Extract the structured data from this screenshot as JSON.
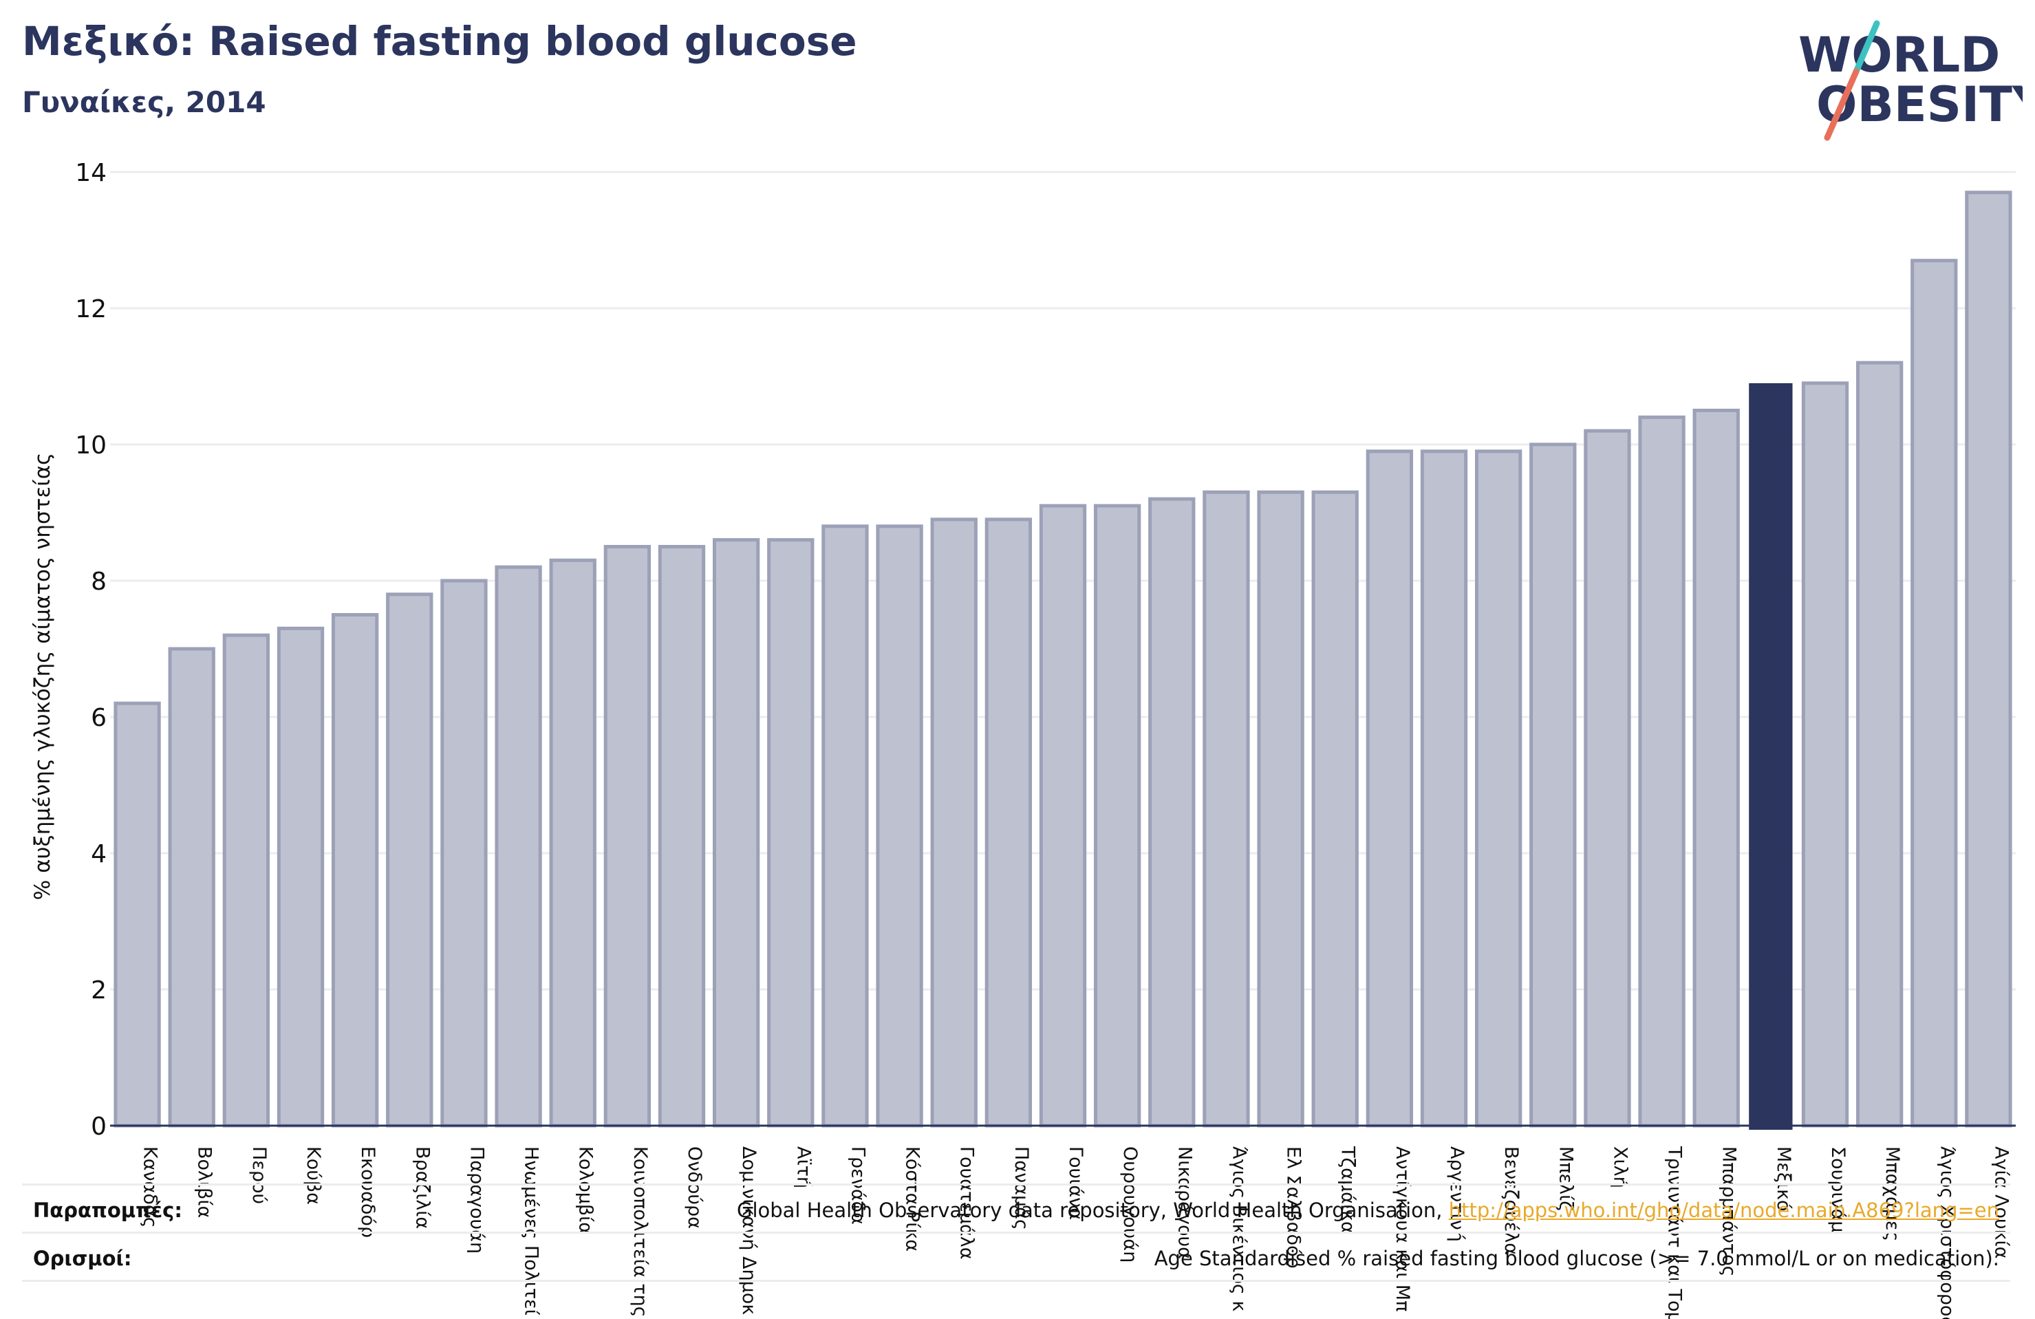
{
  "header": {
    "title": "Μεξικό: Raised fasting blood glucose",
    "subtitle": "Γυναίκες, 2014"
  },
  "logo": {
    "line1": "WORLD",
    "line2": "OBESITY",
    "accent1": "#3ec1c1",
    "accent2": "#e8705a"
  },
  "colors": {
    "bar": "#bec1cf",
    "bar_edge": "#9ca1b8",
    "highlight": "#2b355e",
    "title": "#2b355e",
    "grid": "#ececf0",
    "link": "#e8a92c"
  },
  "chart_data": {
    "type": "bar",
    "ylabel": "% αυξημένης γλυκόζης αίματος νηστείας",
    "ylim": [
      0,
      14
    ],
    "yticks": [
      0,
      2,
      4,
      6,
      8,
      10,
      12,
      14
    ],
    "grid": true,
    "highlight": "Μεξικό",
    "categories": [
      "Καναδάς",
      "Βολιβία",
      "Περού",
      "Κούβα",
      "Εκουαδόρ",
      "Βραζιλία",
      "Παραγουάη",
      "Ηνωμένες Πολιτείες",
      "Κολομβία",
      "Κοινοπολιτεία της Δομινίκας",
      "Ονδούρα",
      "Δομινικανή Δημοκρατία",
      "Αϊτή",
      "Γρενάδα",
      "Κόστα Ρίκα",
      "Γουατεμάλα",
      "Παναμάς",
      "Γουιάνα",
      "Ουρουγουάη",
      "Νικαράγουα",
      "Άγιος Βικέντιος και Γρεναδίνες",
      "Ελ Σαλβαδόρ",
      "Τζαμάικα",
      "Αντίγκουα και Μπαρμπούντα",
      "Αργεντινή",
      "Βενεζουέλα",
      "Μπελίζ",
      "Χιλή",
      "Τρινιντάντ και Τομπάγκο",
      "Μπαρμπάντος",
      "Μεξικό",
      "Σουρινάμ",
      "Μπαχάμες",
      "Άγιος Χριστόφορος και Νέβις",
      "Αγία Λουκία"
    ],
    "tick_labels": [
      "Καναδάς",
      "Βολιβία",
      "Περού",
      "Κούβα",
      "Εκουαδόρ",
      "Βραζιλία",
      "Παραγουάη",
      "Ηνωμένες Πολιτεί",
      "Κολομβία",
      "Κοινοπολιτεία της",
      "Ονδούρα",
      "Δομινικανή Δημοκ",
      "Αϊτή",
      "Γρενάδα",
      "Κόστα Ρίκα",
      "Γουατεμάλα",
      "Παναμάς",
      "Γουιάνα",
      "Ουρουγουάη",
      "Νικαράγουα",
      "Άγιος Βικέντιος κ",
      "Ελ Σαλβαδόρ",
      "Τζαμάικα",
      "Αντίγκουα και Μπ",
      "Αργεντινή",
      "Βενεζουέλα",
      "Μπελίζ",
      "Χιλή",
      "Τρινιντάντ και Τομ",
      "Μπαρμπάντος",
      "Μεξικό",
      "Σουρινάμ",
      "Μπαχάμες",
      "Άγιος Χριστόφορος",
      "Αγία Λουκία"
    ],
    "values": [
      6.2,
      7.0,
      7.2,
      7.3,
      7.5,
      7.8,
      8.0,
      8.2,
      8.3,
      8.5,
      8.5,
      8.6,
      8.6,
      8.8,
      8.8,
      8.9,
      8.9,
      9.1,
      9.1,
      9.2,
      9.3,
      9.3,
      9.3,
      9.9,
      9.9,
      9.9,
      10.0,
      10.2,
      10.4,
      10.5,
      10.9,
      10.9,
      11.2,
      12.7,
      13.7
    ]
  },
  "notes": {
    "sources_label": "Παραπομπές:",
    "sources_text": "Global Health Observatory data repository, World Health Organisation, ",
    "sources_link": "http://apps.who.int/gho/data/node.main.A869?lang=en",
    "definitions_label": "Ορισμοί:",
    "definitions_text": "Age Standardised % raised fasting blood glucose (>= 7.0 mmol/L or on medication)."
  }
}
